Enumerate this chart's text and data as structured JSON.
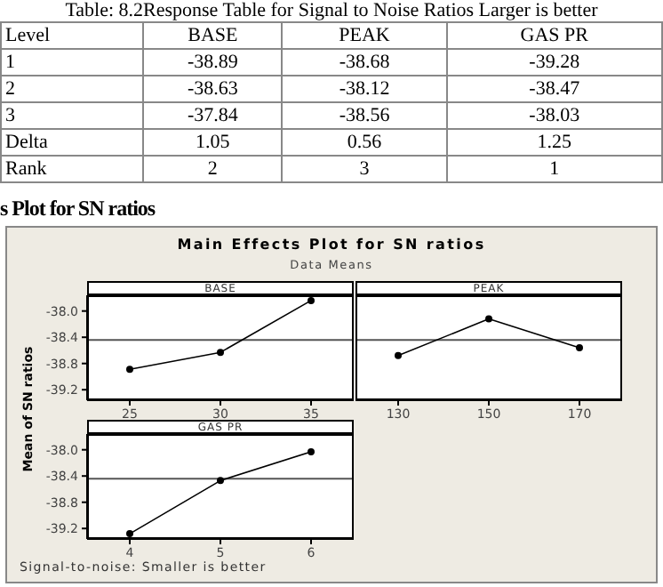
{
  "chart_data": [
    {
      "type": "other",
      "title": "Table: 8.2Response Table for Signal to Noise Ratios Larger is better",
      "ylabel": "Level",
      "categories": [
        "BASE",
        "PEAK",
        "GAS PR"
      ],
      "y_categories": [
        "1",
        "2",
        "3",
        "Delta",
        "Rank"
      ],
      "cell_labels": [
        [
          "-38.89",
          "-38.68",
          "-39.28"
        ],
        [
          "-38.63",
          "-38.12",
          "-38.47"
        ],
        [
          "-37.84",
          "-38.56",
          "-38.03"
        ],
        [
          "1.05",
          "0.56",
          "1.25"
        ],
        [
          "2",
          "3",
          "1"
        ]
      ],
      "annotations": [
        "s Plot for SN ratios"
      ]
    },
    {
      "type": "line",
      "title": "Main Effects Plot for SN ratios",
      "subtitle": "Data Means",
      "ylabel": "Mean of SN ratios",
      "xlabel": "BASE",
      "categories": [
        "25",
        "30",
        "35"
      ],
      "series": [
        {
          "color": "#000000",
          "values": [
            -38.89,
            -38.63,
            -37.84
          ]
        }
      ],
      "ylim": [
        -39.36,
        -37.76
      ],
      "yticks": [
        {
          "value": -38,
          "label": "-38.0"
        },
        -38.4,
        -38.8,
        -39.2
      ],
      "ref_lines": [
        {
          "axis": "y",
          "value": -38.44
        }
      ],
      "marker": "circle",
      "annotations": [
        "Signal-to-noise: Smaller is better"
      ]
    },
    {
      "type": "line",
      "xlabel": "PEAK",
      "categories": [
        "130",
        "150",
        "170"
      ],
      "series": [
        {
          "color": "#000000",
          "values": [
            -38.68,
            -38.12,
            -38.56
          ]
        }
      ],
      "ylim": [
        -39.36,
        -37.76
      ],
      "ref_lines": [
        {
          "axis": "y",
          "value": -38.44
        }
      ],
      "marker": "circle",
      "tick_labels": "x"
    },
    {
      "type": "line",
      "xlabel": "GAS PR",
      "categories": [
        "4",
        "5",
        "6"
      ],
      "series": [
        {
          "color": "#000000",
          "values": [
            -39.28,
            -38.47,
            -38.03
          ]
        }
      ],
      "ylim": [
        -39.36,
        -37.76
      ],
      "yticks": [
        {
          "value": -38,
          "label": "-38.0"
        },
        -38.4,
        -38.8,
        -39.2
      ],
      "ref_lines": [
        {
          "axis": "y",
          "value": -38.44
        }
      ],
      "marker": "circle"
    }
  ]
}
